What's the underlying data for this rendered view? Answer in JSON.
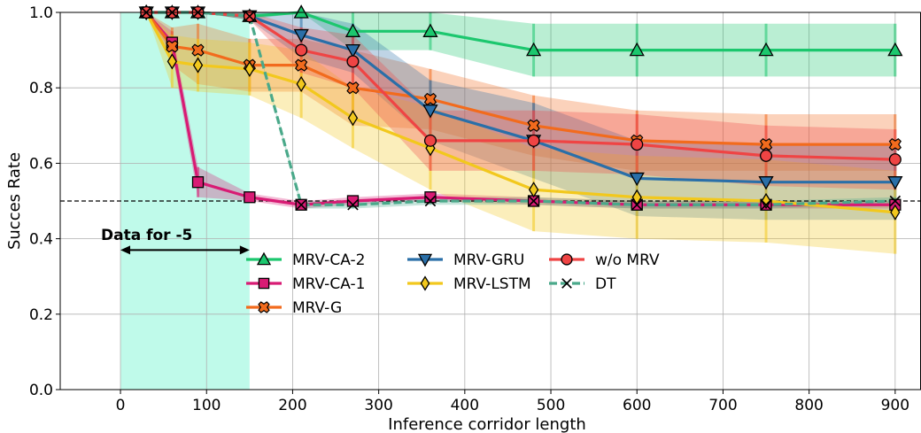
{
  "chart_data": {
    "type": "line",
    "title": "",
    "xlabel": "Inference corridor length",
    "ylabel": "Succes Rate",
    "xlim": [
      -70,
      930
    ],
    "ylim": [
      0.0,
      1.0
    ],
    "xticks": [
      0,
      100,
      200,
      300,
      400,
      500,
      600,
      700,
      800,
      900
    ],
    "yticks": [
      0.0,
      0.2,
      0.4,
      0.6,
      0.8,
      1.0
    ],
    "xtick_labels": [
      "0",
      "100",
      "200",
      "300",
      "400",
      "500",
      "600",
      "700",
      "800",
      "900"
    ],
    "ytick_labels": [
      "0.0",
      "0.2",
      "0.4",
      "0.6",
      "0.8",
      "1.0"
    ],
    "grid": true,
    "legend_position": "center",
    "reference_line": {
      "y": 0.5,
      "style": "dashed",
      "color": "#000000"
    },
    "shaded_region": {
      "x0": 0,
      "x1": 150,
      "color": "#7ff5d5"
    },
    "annotation": {
      "text": "Data for -5",
      "arrow_from": 0,
      "arrow_to": 150,
      "y": 0.37
    },
    "series": [
      {
        "name": "MRV-CA-2",
        "color": "#1cc76e",
        "marker": "triangle-up",
        "x": [
          30,
          60,
          90,
          150,
          210,
          270,
          360,
          480,
          600,
          750,
          900
        ],
        "y": [
          1.0,
          1.0,
          1.0,
          0.99,
          1.0,
          0.95,
          0.95,
          0.9,
          0.9,
          0.9,
          0.9
        ],
        "lower": [
          1.0,
          1.0,
          1.0,
          0.98,
          1.0,
          0.9,
          0.9,
          0.83,
          0.83,
          0.83,
          0.83
        ],
        "upper": [
          1.0,
          1.0,
          1.0,
          1.0,
          1.0,
          1.0,
          1.0,
          0.97,
          0.97,
          0.97,
          0.97
        ]
      },
      {
        "name": "MRV-CA-1",
        "color": "#d81b74",
        "marker": "square",
        "x": [
          30,
          60,
          90,
          150,
          210,
          270,
          360,
          480,
          600,
          750,
          900
        ],
        "y": [
          1.0,
          0.92,
          0.55,
          0.51,
          0.49,
          0.5,
          0.51,
          0.5,
          0.49,
          0.49,
          0.49
        ],
        "lower": [
          1.0,
          0.89,
          0.51,
          0.5,
          0.48,
          0.49,
          0.5,
          0.49,
          0.48,
          0.48,
          0.48
        ],
        "upper": [
          1.0,
          0.95,
          0.59,
          0.52,
          0.5,
          0.51,
          0.52,
          0.51,
          0.5,
          0.5,
          0.5
        ]
      },
      {
        "name": "MRV-G",
        "color": "#f26b1d",
        "marker": "x-filled",
        "x": [
          30,
          60,
          90,
          150,
          210,
          270,
          360,
          480,
          600,
          750,
          900
        ],
        "y": [
          1.0,
          0.91,
          0.9,
          0.86,
          0.86,
          0.8,
          0.77,
          0.7,
          0.66,
          0.65,
          0.65
        ],
        "lower": [
          1.0,
          0.86,
          0.81,
          0.79,
          0.79,
          0.7,
          0.69,
          0.62,
          0.58,
          0.58,
          0.58
        ],
        "upper": [
          1.0,
          0.96,
          0.97,
          0.93,
          0.93,
          0.9,
          0.85,
          0.78,
          0.74,
          0.73,
          0.73
        ]
      },
      {
        "name": "MRV-GRU",
        "color": "#2a6fa8",
        "marker": "triangle-down",
        "x": [
          30,
          60,
          90,
          150,
          210,
          270,
          360,
          480,
          600,
          750,
          900
        ],
        "y": [
          1.0,
          1.0,
          1.0,
          0.99,
          0.94,
          0.9,
          0.74,
          0.66,
          0.56,
          0.55,
          0.55
        ],
        "lower": [
          1.0,
          1.0,
          1.0,
          0.98,
          0.88,
          0.84,
          0.66,
          0.56,
          0.46,
          0.45,
          0.45
        ],
        "upper": [
          1.0,
          1.0,
          1.0,
          1.0,
          1.0,
          0.97,
          0.82,
          0.76,
          0.66,
          0.65,
          0.65
        ]
      },
      {
        "name": "MRV-LSTM",
        "color": "#f2c81d",
        "marker": "diamond",
        "x": [
          30,
          60,
          90,
          150,
          210,
          270,
          360,
          480,
          600,
          750,
          900
        ],
        "y": [
          1.0,
          0.87,
          0.86,
          0.85,
          0.81,
          0.72,
          0.64,
          0.53,
          0.51,
          0.5,
          0.47
        ],
        "lower": [
          1.0,
          0.8,
          0.79,
          0.78,
          0.72,
          0.64,
          0.53,
          0.42,
          0.4,
          0.39,
          0.36
        ],
        "upper": [
          1.0,
          0.94,
          0.93,
          0.92,
          0.9,
          0.8,
          0.75,
          0.64,
          0.62,
          0.61,
          0.58
        ]
      },
      {
        "name": "w/o MRV",
        "color": "#ef4444",
        "marker": "circle",
        "x": [
          30,
          60,
          90,
          150,
          210,
          270,
          360,
          480,
          600,
          750,
          900
        ],
        "y": [
          1.0,
          1.0,
          1.0,
          0.99,
          0.9,
          0.87,
          0.66,
          0.66,
          0.65,
          0.62,
          0.61
        ],
        "lower": [
          1.0,
          1.0,
          1.0,
          0.98,
          0.84,
          0.8,
          0.58,
          0.58,
          0.57,
          0.54,
          0.53
        ],
        "upper": [
          1.0,
          1.0,
          1.0,
          1.0,
          0.96,
          0.94,
          0.74,
          0.74,
          0.73,
          0.7,
          0.69
        ]
      },
      {
        "name": "DT",
        "color": "#4aa98a",
        "marker": "x",
        "dashed": true,
        "x": [
          30,
          60,
          90,
          150,
          210,
          270,
          360,
          480,
          600,
          750,
          900
        ],
        "y": [
          1.0,
          1.0,
          1.0,
          0.99,
          0.49,
          0.49,
          0.5,
          0.5,
          0.49,
          0.49,
          0.5
        ],
        "lower": [
          1.0,
          1.0,
          1.0,
          0.99,
          0.48,
          0.48,
          0.49,
          0.49,
          0.48,
          0.48,
          0.49
        ],
        "upper": [
          1.0,
          1.0,
          1.0,
          0.99,
          0.5,
          0.5,
          0.51,
          0.51,
          0.5,
          0.5,
          0.51
        ]
      }
    ],
    "legend_order": [
      "MRV-CA-2",
      "MRV-CA-1",
      "MRV-G",
      "MRV-GRU",
      "MRV-LSTM",
      "w/o MRV",
      "DT"
    ]
  }
}
